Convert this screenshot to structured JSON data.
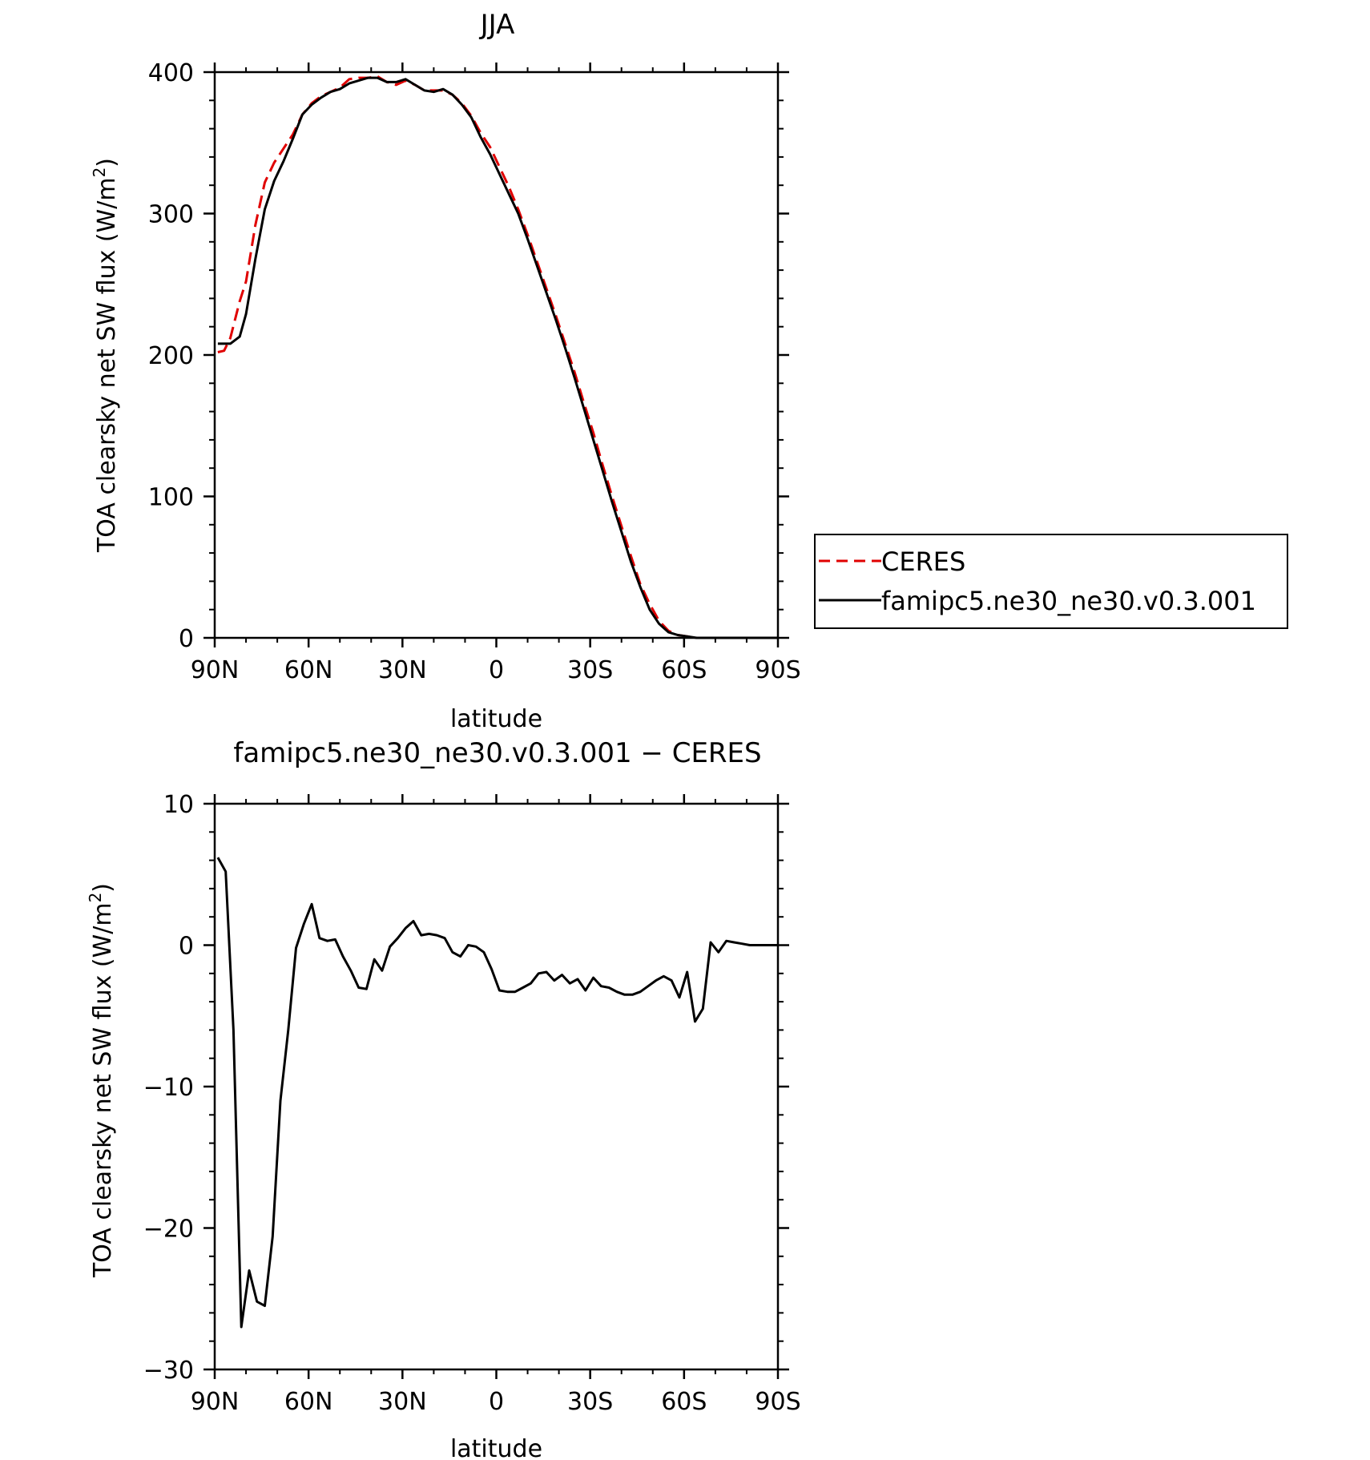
{
  "charts": {
    "top": {
      "title": "JJA",
      "xlabel": "latitude",
      "ylabel_main": "TOA clearsky net SW flux (W/m",
      "ylabel_sup": "2",
      "ylabel_close": ")"
    },
    "bottom": {
      "title": "famipc5.ne30_ne30.v0.3.001 − CERES",
      "xlabel": "latitude",
      "ylabel_main": "TOA clearsky net SW flux (W/m",
      "ylabel_sup": "2",
      "ylabel_close": ")"
    }
  },
  "legend": {
    "items": [
      {
        "label": "CERES",
        "color": "#e00000",
        "dash": true
      },
      {
        "label": "famipc5.ne30_ne30.v0.3.001",
        "color": "#000000",
        "dash": false
      }
    ]
  },
  "chart_data": [
    {
      "type": "line",
      "title": "JJA",
      "xlabel": "latitude",
      "ylabel": "TOA clearsky net SW flux (W/m2)",
      "xlim": [
        -90,
        90
      ],
      "ylim": [
        0,
        400
      ],
      "xticks": [
        -90,
        -60,
        -30,
        0,
        30,
        60,
        90
      ],
      "xticklabels": [
        "90N",
        "60N",
        "30N",
        "0",
        "30S",
        "60S",
        "90S"
      ],
      "yticks": [
        0,
        100,
        200,
        300,
        400
      ],
      "yticklabels": [
        "0",
        "100",
        "200",
        "300",
        "400"
      ],
      "legend_position": "right",
      "series": [
        {
          "name": "CERES",
          "color": "#e00000",
          "style": "dashed",
          "x": [
            -89,
            -87,
            -85,
            -82,
            -80,
            -77,
            -74,
            -71,
            -68,
            -65,
            -62,
            -59,
            -56,
            -53,
            -50,
            -47,
            -44,
            -41,
            -38,
            -35,
            -32,
            -29,
            -26,
            -23,
            -20,
            -17,
            -14,
            -11,
            -8,
            -5,
            -2,
            1,
            4,
            7,
            10,
            13,
            16,
            19,
            22,
            25,
            28,
            31,
            34,
            37,
            40,
            43,
            46,
            49,
            52,
            55,
            58,
            61,
            64,
            67,
            70,
            73,
            76,
            79,
            82,
            85,
            88,
            90
          ],
          "y": [
            202,
            203,
            212,
            238,
            252,
            292,
            322,
            336,
            346,
            356,
            370,
            378,
            383,
            386,
            389,
            395,
            396,
            396,
            397,
            393,
            391,
            394,
            391,
            387,
            387,
            387,
            384,
            378,
            369,
            357,
            347,
            333,
            319,
            303,
            285,
            266,
            247,
            228,
            208,
            188,
            166,
            145,
            122,
            100,
            79,
            58,
            38,
            24,
            12,
            5,
            2,
            1,
            0,
            0,
            0,
            0,
            0,
            0,
            0,
            0,
            0,
            0
          ]
        },
        {
          "name": "famipc5.ne30_ne30.v0.3.001",
          "color": "#000000",
          "style": "solid",
          "x": [
            -89,
            -87,
            -85,
            -82,
            -80,
            -77,
            -74,
            -71,
            -68,
            -65,
            -62,
            -59,
            -56,
            -53,
            -50,
            -47,
            -44,
            -41,
            -38,
            -35,
            -32,
            -29,
            -26,
            -23,
            -20,
            -17,
            -14,
            -11,
            -8,
            -5,
            -2,
            1,
            4,
            7,
            10,
            13,
            16,
            19,
            22,
            25,
            28,
            31,
            34,
            37,
            40,
            43,
            46,
            49,
            52,
            55,
            58,
            61,
            64,
            67,
            70,
            73,
            76,
            79,
            82,
            85,
            88,
            90
          ],
          "y": [
            208,
            208,
            208,
            213,
            229,
            268,
            303,
            323,
            337,
            353,
            370,
            377,
            382,
            386,
            388,
            392,
            394,
            396,
            396,
            393,
            393,
            395,
            391,
            387,
            386,
            388,
            384,
            377,
            368,
            354,
            342,
            328,
            314,
            300,
            282,
            263,
            244,
            225,
            205,
            184,
            162,
            140,
            118,
            96,
            75,
            54,
            36,
            20,
            10,
            4,
            2,
            1,
            0,
            0,
            0,
            0,
            0,
            0,
            0,
            0,
            0,
            0
          ]
        }
      ]
    },
    {
      "type": "line",
      "title": "famipc5.ne30_ne30.v0.3.001 − CERES",
      "xlabel": "latitude",
      "ylabel": "TOA clearsky net SW flux (W/m2)",
      "xlim": [
        -90,
        90
      ],
      "ylim": [
        -30,
        10
      ],
      "xticks": [
        -90,
        -60,
        -30,
        0,
        30,
        60,
        90
      ],
      "xticklabels": [
        "90N",
        "60N",
        "30N",
        "0",
        "30S",
        "60S",
        "90S"
      ],
      "yticks": [
        -30,
        -20,
        -10,
        0,
        10
      ],
      "yticklabels": [
        "−30",
        "−20",
        "−10",
        "0",
        "10"
      ],
      "series": [
        {
          "name": "",
          "color": "#000000",
          "style": "solid",
          "x": [
            -89,
            -86.5,
            -84,
            -81.5,
            -79,
            -76.5,
            -74,
            -71.5,
            -69,
            -66.5,
            -64,
            -61.5,
            -59,
            -56.5,
            -54,
            -51.5,
            -49,
            -46.5,
            -44,
            -41.5,
            -39,
            -36.5,
            -34,
            -31.5,
            -29,
            -26.5,
            -24,
            -21.5,
            -19,
            -16.5,
            -14,
            -11.5,
            -9,
            -6.5,
            -4,
            -1.5,
            1,
            3.5,
            6,
            8.5,
            11,
            13.5,
            16,
            18.5,
            21,
            23.5,
            26,
            28.5,
            31,
            33.5,
            36,
            38.5,
            41,
            43.5,
            46,
            48.5,
            51,
            53.5,
            56,
            58.5,
            61,
            63.5,
            66,
            68.5,
            71,
            73.5,
            76,
            78.5,
            81,
            83.5,
            86,
            88.5,
            90
          ],
          "y": [
            6.2,
            5.2,
            -6,
            -27,
            -23,
            -25.2,
            -25.5,
            -20.6,
            -11,
            -6,
            -0.2,
            1.5,
            2.9,
            0.5,
            0.3,
            0.4,
            -0.8,
            -1.8,
            -3.0,
            -3.1,
            -1.0,
            -1.8,
            -0.1,
            0.5,
            1.2,
            1.7,
            0.7,
            0.8,
            0.7,
            0.5,
            -0.5,
            -0.8,
            0,
            -0.1,
            -0.5,
            -1.7,
            -3.2,
            -3.3,
            -3.3,
            -3.0,
            -2.7,
            -2.0,
            -1.9,
            -2.5,
            -2.1,
            -2.7,
            -2.4,
            -3.2,
            -2.3,
            -2.9,
            -3.0,
            -3.3,
            -3.5,
            -3.5,
            -3.3,
            -2.9,
            -2.5,
            -2.2,
            -2.5,
            -3.7,
            -1.9,
            -5.4,
            -4.5,
            0.2,
            -0.5,
            0.3,
            0.2,
            0.1,
            0,
            0,
            0,
            0,
            0
          ]
        }
      ]
    }
  ]
}
